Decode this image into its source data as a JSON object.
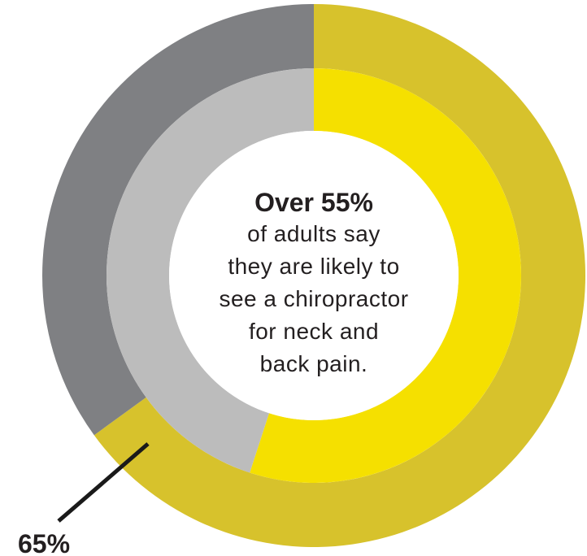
{
  "chart_data": {
    "type": "donut",
    "rings": [
      {
        "ring": "outer",
        "segments": [
          {
            "label": "65%",
            "value": 65,
            "color": "#d7c22c"
          },
          {
            "value": 35,
            "color": "#7f8083"
          }
        ]
      },
      {
        "ring": "inner",
        "segments": [
          {
            "value": 55,
            "color": "#f5e000"
          },
          {
            "value": 45,
            "color": "#bcbcbc"
          }
        ]
      }
    ],
    "annotations": [
      {
        "text": "65%",
        "ring": "outer",
        "segment": 0
      }
    ]
  },
  "center": {
    "headline": "Over 55%",
    "lines": [
      "of adults say",
      "they are likely to",
      "see a chiropractor",
      "for neck and",
      "back pain."
    ]
  }
}
